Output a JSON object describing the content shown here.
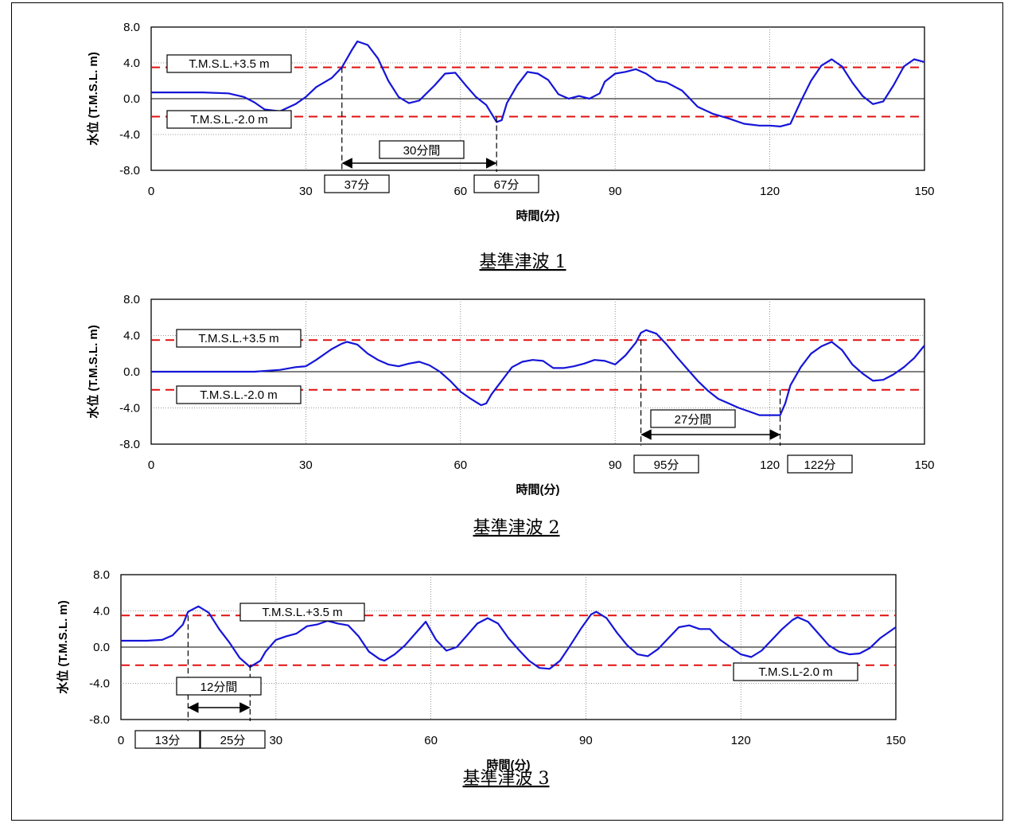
{
  "chart_data": [
    {
      "type": "line",
      "title": "基準津波 1",
      "xlabel": "時間(分)",
      "ylabel": "水位 (T.M.S.L. m)",
      "xlim": [
        0,
        150
      ],
      "ylim": [
        -8.0,
        8.0
      ],
      "xticks": [
        "0",
        "30",
        "60",
        "90",
        "120",
        "150"
      ],
      "yticks": [
        "8.0",
        "4.0",
        "0.0",
        "-4.0",
        "-8.0"
      ],
      "grid": true,
      "thresholds": [
        {
          "label": "T.M.S.L.+3.5 m",
          "value": 3.5
        },
        {
          "label": "T.M.S.L.-2.0 m",
          "value": -2.0
        }
      ],
      "markers": [
        {
          "label": "37分",
          "x": 37
        },
        {
          "label": "67分",
          "x": 67
        }
      ],
      "span_label": "30分間",
      "series": [
        {
          "color": "#1515d8",
          "x": [
            0,
            5,
            10,
            15,
            18,
            20,
            22,
            25,
            28,
            30,
            32,
            35,
            37,
            39,
            40,
            42,
            44,
            46,
            48,
            50,
            52,
            55,
            57,
            59,
            61,
            63,
            65,
            67,
            68,
            69,
            71,
            73,
            75,
            77,
            79,
            81,
            83,
            85,
            87,
            88,
            90,
            92,
            94,
            96,
            98,
            100,
            103,
            106,
            109,
            112,
            115,
            118,
            120,
            122,
            124,
            126,
            128,
            130,
            132,
            134,
            136,
            138,
            140,
            142,
            144,
            146,
            148,
            150
          ],
          "y": [
            0.7,
            0.7,
            0.7,
            0.6,
            0.2,
            -0.4,
            -1.2,
            -1.4,
            -0.6,
            0.2,
            1.3,
            2.3,
            3.5,
            5.5,
            6.4,
            6.0,
            4.5,
            2.0,
            0.2,
            -0.5,
            -0.2,
            1.5,
            2.8,
            2.9,
            1.5,
            0.2,
            -0.7,
            -2.6,
            -2.4,
            -0.5,
            1.5,
            3.0,
            2.8,
            2.1,
            0.5,
            0.0,
            0.3,
            0.0,
            0.6,
            1.9,
            2.8,
            3.0,
            3.3,
            2.8,
            2.0,
            1.8,
            0.9,
            -0.9,
            -1.7,
            -2.2,
            -2.8,
            -3.0,
            -3.0,
            -3.1,
            -2.8,
            -0.3,
            2.0,
            3.7,
            4.4,
            3.6,
            1.8,
            0.3,
            -0.6,
            -0.3,
            1.5,
            3.6,
            4.4,
            4.1
          ]
        }
      ]
    },
    {
      "type": "line",
      "title": "基準津波 2",
      "xlabel": "時間(分)",
      "ylabel": "水位 (T.M.S.L. m)",
      "xlim": [
        0,
        150
      ],
      "ylim": [
        -8.0,
        8.0
      ],
      "xticks": [
        "0",
        "30",
        "60",
        "90",
        "120",
        "150"
      ],
      "yticks": [
        "8.0",
        "4.0",
        "0.0",
        "-4.0",
        "-8.0"
      ],
      "grid": true,
      "thresholds": [
        {
          "label": "T.M.S.L.+3.5 m",
          "value": 3.5
        },
        {
          "label": "T.M.S.L.-2.0 m",
          "value": -2.0
        }
      ],
      "markers": [
        {
          "label": "95分",
          "x": 95
        },
        {
          "label": "122分",
          "x": 122
        }
      ],
      "span_label": "27分間",
      "series": [
        {
          "color": "#1515d8",
          "x": [
            0,
            10,
            20,
            25,
            28,
            30,
            32,
            35,
            37,
            38,
            40,
            42,
            44,
            46,
            48,
            50,
            52,
            54,
            56,
            58,
            60,
            62,
            64,
            65,
            66,
            68,
            70,
            72,
            74,
            76,
            78,
            80,
            82,
            84,
            86,
            88,
            90,
            92,
            94,
            95,
            96,
            98,
            100,
            102,
            104,
            106,
            108,
            110,
            112,
            114,
            116,
            118,
            120,
            121,
            122,
            123,
            124,
            126,
            128,
            130,
            132,
            134,
            136,
            138,
            140,
            142,
            144,
            146,
            148,
            150
          ],
          "y": [
            0.0,
            0.0,
            0.0,
            0.2,
            0.5,
            0.6,
            1.3,
            2.5,
            3.1,
            3.3,
            3.0,
            2.0,
            1.3,
            0.8,
            0.6,
            0.9,
            1.1,
            0.7,
            0.0,
            -1.0,
            -2.2,
            -3.0,
            -3.7,
            -3.5,
            -2.5,
            -1.0,
            0.5,
            1.1,
            1.3,
            1.2,
            0.4,
            0.4,
            0.6,
            0.9,
            1.3,
            1.2,
            0.8,
            1.8,
            3.2,
            4.3,
            4.6,
            4.2,
            3.0,
            1.6,
            0.3,
            -1.0,
            -2.1,
            -3.0,
            -3.5,
            -4.0,
            -4.4,
            -4.8,
            -4.8,
            -4.8,
            -4.8,
            -3.5,
            -1.5,
            0.5,
            2.0,
            2.8,
            3.3,
            2.4,
            0.8,
            -0.2,
            -1.0,
            -0.9,
            -0.3,
            0.5,
            1.5,
            2.9
          ]
        }
      ]
    },
    {
      "type": "line",
      "title": "基準津波 3",
      "xlabel": "時間(分)",
      "ylabel": "水位 (T.M.S.L. m)",
      "xlim": [
        0,
        150
      ],
      "ylim": [
        -8.0,
        8.0
      ],
      "xticks": [
        "0",
        "30",
        "60",
        "90",
        "120",
        "150"
      ],
      "yticks": [
        "8.0",
        "4.0",
        "0.0",
        "-4.0",
        "-8.0"
      ],
      "grid": true,
      "thresholds": [
        {
          "label": "T.M.S.L.+3.5 m",
          "value": 3.5
        },
        {
          "label": "T.M.S.L-2.0 m",
          "value": -2.0
        }
      ],
      "markers": [
        {
          "label": "13分",
          "x": 13
        },
        {
          "label": "25分",
          "x": 25
        }
      ],
      "span_label": "12分間",
      "series": [
        {
          "color": "#1515d8",
          "x": [
            0,
            5,
            8,
            10,
            12,
            13,
            15,
            17,
            19,
            21,
            23,
            25,
            27,
            28,
            30,
            32,
            34,
            36,
            38,
            40,
            42,
            44,
            46,
            48,
            50,
            51,
            53,
            55,
            57,
            59,
            61,
            63,
            65,
            67,
            69,
            71,
            73,
            75,
            77,
            79,
            81,
            83,
            85,
            87,
            89,
            91,
            92,
            94,
            96,
            98,
            100,
            102,
            104,
            106,
            108,
            110,
            112,
            114,
            116,
            118,
            120,
            122,
            124,
            126,
            128,
            130,
            131,
            133,
            135,
            137,
            139,
            141,
            143,
            145,
            147,
            150
          ],
          "y": [
            0.7,
            0.7,
            0.8,
            1.3,
            2.5,
            3.9,
            4.5,
            3.8,
            2.0,
            0.5,
            -1.2,
            -2.2,
            -1.5,
            -0.5,
            0.8,
            1.2,
            1.5,
            2.3,
            2.5,
            2.9,
            2.6,
            2.4,
            1.2,
            -0.5,
            -1.3,
            -1.5,
            -0.8,
            0.2,
            1.5,
            2.8,
            0.8,
            -0.4,
            0.0,
            1.3,
            2.6,
            3.2,
            2.6,
            1.0,
            -0.3,
            -1.5,
            -2.3,
            -2.4,
            -1.5,
            0.2,
            2.0,
            3.6,
            3.9,
            3.2,
            1.6,
            0.2,
            -0.8,
            -1.0,
            -0.2,
            1.0,
            2.2,
            2.4,
            2.0,
            2.0,
            0.8,
            0.0,
            -0.8,
            -1.1,
            -0.4,
            0.8,
            2.0,
            3.0,
            3.3,
            2.8,
            1.5,
            0.2,
            -0.5,
            -0.8,
            -0.7,
            -0.1,
            1.0,
            2.2
          ]
        }
      ]
    }
  ]
}
